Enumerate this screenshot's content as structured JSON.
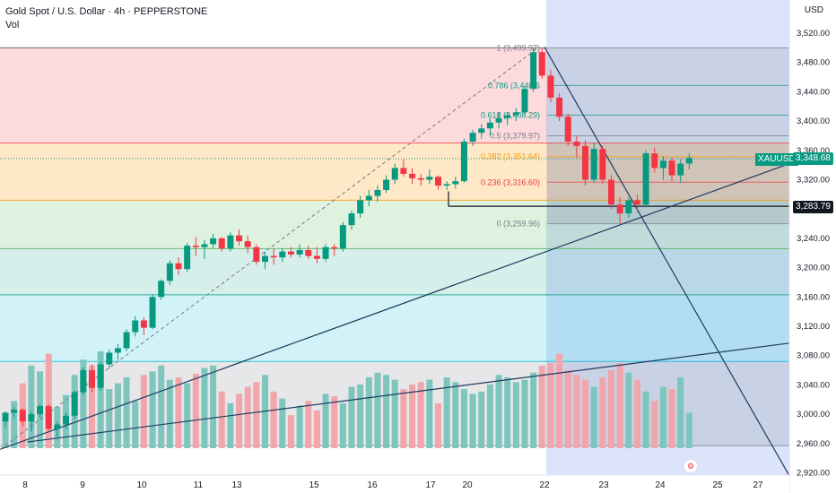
{
  "header": {
    "title": "Gold Spot / U.S. Dollar · 4h · PEPPERSTONE",
    "volume_label": "Vol"
  },
  "axis": {
    "currency": "USD"
  },
  "ticker": {
    "symbol": "XAUUSD",
    "price_label": "3,348.68",
    "level_label": "3,283.79"
  },
  "colors": {
    "up": "#089981",
    "down": "#f23645",
    "up_vol": "#7ec6bd",
    "down_vol": "#f1a6ab",
    "line": "#1e3a5f",
    "dark_badge": "#131722"
  },
  "icons": {
    "settings": "gear-icon"
  },
  "chart_data": {
    "type": "candlestick",
    "y_axis": {
      "ticks": [
        3520,
        3480,
        3440,
        3400,
        3360,
        3320,
        3280,
        3240,
        3200,
        3160,
        3120,
        3080,
        3040,
        3000,
        2960,
        2920
      ],
      "tick_labels": [
        "3,520.00",
        "3,480.00",
        "3,440.00",
        "3,400.00",
        "3,360.00",
        "3,320.00",
        "3,280.00",
        "3,240.00",
        "3,200.00",
        "3,160.00",
        "3,120.00",
        "3,080.00",
        "3,040.00",
        "3,000.00",
        "2,960.00",
        "2,920.00"
      ],
      "range": [
        2915,
        3545
      ]
    },
    "x_axis": {
      "labels": [
        "8",
        "9",
        "10",
        "11",
        "13",
        "15",
        "16",
        "17",
        "20",
        "22",
        "23",
        "24",
        "25",
        "27"
      ]
    },
    "fib_levels": [
      {
        "ratio": "1",
        "price": 3499.97,
        "label": "1 (3,499.97)"
      },
      {
        "ratio": "0.786",
        "price": 3448.6,
        "label": "0.786 (3,448.6"
      },
      {
        "ratio": "0.618",
        "price": 3408.29,
        "label": "0.618 (3,408.29)"
      },
      {
        "ratio": "0.5",
        "price": 3379.97,
        "label": "0.5 (3,379.97)"
      },
      {
        "ratio": "0.382",
        "price": 3351.64,
        "label": "0.382 (3,351.64)"
      },
      {
        "ratio": "0.236",
        "price": 3316.6,
        "label": "0.236 (3,316.60)"
      },
      {
        "ratio": "0",
        "price": 3259.96,
        "label": "0 (3,259.96)"
      }
    ],
    "horizontal_levels": [
      3370,
      3292,
      3226,
      3163,
      3072,
      2957
    ],
    "last_price": 3348.68,
    "marked_level": 3283.79,
    "candles": [
      [
        2990,
        3004,
        2982,
        3002
      ],
      [
        3002,
        3010,
        2994,
        3006
      ],
      [
        3006,
        3008,
        2984,
        2990
      ],
      [
        2990,
        3004,
        2976,
        3000
      ],
      [
        3000,
        3014,
        2996,
        3011
      ],
      [
        3011,
        3014,
        2978,
        2980
      ],
      [
        2980,
        2990,
        2966,
        2986
      ],
      [
        2986,
        3002,
        2980,
        2998
      ],
      [
        2998,
        3032,
        2994,
        3030
      ],
      [
        3030,
        3064,
        3026,
        3060
      ],
      [
        3060,
        3068,
        3030,
        3036
      ],
      [
        3036,
        3072,
        3032,
        3068
      ],
      [
        3068,
        3088,
        3062,
        3084
      ],
      [
        3084,
        3096,
        3074,
        3090
      ],
      [
        3090,
        3116,
        3086,
        3112
      ],
      [
        3112,
        3134,
        3106,
        3128
      ],
      [
        3128,
        3132,
        3108,
        3118
      ],
      [
        3118,
        3164,
        3116,
        3160
      ],
      [
        3160,
        3184,
        3156,
        3182
      ],
      [
        3182,
        3210,
        3176,
        3206
      ],
      [
        3206,
        3214,
        3190,
        3198
      ],
      [
        3198,
        3234,
        3194,
        3230
      ],
      [
        3230,
        3242,
        3216,
        3228
      ],
      [
        3228,
        3238,
        3212,
        3232
      ],
      [
        3232,
        3246,
        3226,
        3240
      ],
      [
        3240,
        3242,
        3222,
        3226
      ],
      [
        3226,
        3248,
        3222,
        3244
      ],
      [
        3244,
        3252,
        3230,
        3236
      ],
      [
        3236,
        3244,
        3220,
        3228
      ],
      [
        3228,
        3232,
        3204,
        3208
      ],
      [
        3208,
        3222,
        3198,
        3216
      ],
      [
        3216,
        3226,
        3204,
        3214
      ],
      [
        3214,
        3226,
        3208,
        3222
      ],
      [
        3222,
        3228,
        3214,
        3218
      ],
      [
        3218,
        3232,
        3214,
        3224
      ],
      [
        3224,
        3230,
        3212,
        3216
      ],
      [
        3216,
        3228,
        3206,
        3212
      ],
      [
        3212,
        3232,
        3208,
        3228
      ],
      [
        3228,
        3232,
        3216,
        3226
      ],
      [
        3226,
        3262,
        3222,
        3258
      ],
      [
        3258,
        3278,
        3252,
        3274
      ],
      [
        3274,
        3298,
        3268,
        3292
      ],
      [
        3292,
        3306,
        3284,
        3298
      ],
      [
        3298,
        3312,
        3290,
        3306
      ],
      [
        3306,
        3326,
        3302,
        3320
      ],
      [
        3320,
        3342,
        3314,
        3336
      ],
      [
        3336,
        3348,
        3324,
        3328
      ],
      [
        3328,
        3336,
        3314,
        3322
      ],
      [
        3322,
        3328,
        3312,
        3320
      ],
      [
        3320,
        3334,
        3314,
        3324
      ],
      [
        3324,
        3326,
        3306,
        3312
      ],
      [
        3312,
        3318,
        3306,
        3314
      ],
      [
        3314,
        3324,
        3308,
        3318
      ],
      [
        3318,
        3376,
        3316,
        3372
      ],
      [
        3372,
        3388,
        3366,
        3384
      ],
      [
        3384,
        3396,
        3376,
        3390
      ],
      [
        3390,
        3404,
        3380,
        3398
      ],
      [
        3398,
        3412,
        3390,
        3404
      ],
      [
        3404,
        3412,
        3394,
        3408
      ],
      [
        3408,
        3418,
        3400,
        3412
      ],
      [
        3412,
        3448,
        3408,
        3444
      ],
      [
        3444,
        3500,
        3440,
        3494
      ],
      [
        3494,
        3500,
        3458,
        3462
      ],
      [
        3462,
        3470,
        3426,
        3432
      ],
      [
        3432,
        3438,
        3400,
        3406
      ],
      [
        3406,
        3410,
        3366,
        3372
      ],
      [
        3372,
        3380,
        3350,
        3366
      ],
      [
        3366,
        3374,
        3312,
        3320
      ],
      [
        3320,
        3370,
        3316,
        3362
      ],
      [
        3362,
        3366,
        3314,
        3320
      ],
      [
        3320,
        3326,
        3280,
        3286
      ],
      [
        3286,
        3296,
        3260,
        3274
      ],
      [
        3274,
        3296,
        3268,
        3292
      ],
      [
        3292,
        3300,
        3276,
        3286
      ],
      [
        3286,
        3360,
        3282,
        3356
      ],
      [
        3356,
        3364,
        3330,
        3336
      ],
      [
        3336,
        3352,
        3320,
        3346
      ],
      [
        3346,
        3350,
        3318,
        3326
      ],
      [
        3326,
        3348,
        3316,
        3342
      ],
      [
        3342,
        3356,
        3334,
        3350
      ]
    ],
    "volumes": [
      30,
      40,
      55,
      70,
      65,
      80,
      35,
      45,
      62,
      75,
      70,
      82,
      50,
      55,
      60,
      40,
      62,
      65,
      70,
      58,
      60,
      55,
      63,
      68,
      70,
      48,
      38,
      46,
      52,
      56,
      62,
      48,
      42,
      28,
      36,
      40,
      32,
      46,
      44,
      38,
      52,
      54,
      60,
      64,
      62,
      58,
      50,
      54,
      56,
      58,
      38,
      60,
      56,
      50,
      46,
      48,
      54,
      62,
      60,
      56,
      58,
      64,
      70,
      72,
      80,
      66,
      62,
      58,
      52,
      60,
      66,
      72,
      64,
      58,
      48,
      40,
      52,
      50,
      60,
      30
    ],
    "notes": "Candlestick 4h price chart with volume bars, Fibonacci retracement levels and trendlines"
  }
}
